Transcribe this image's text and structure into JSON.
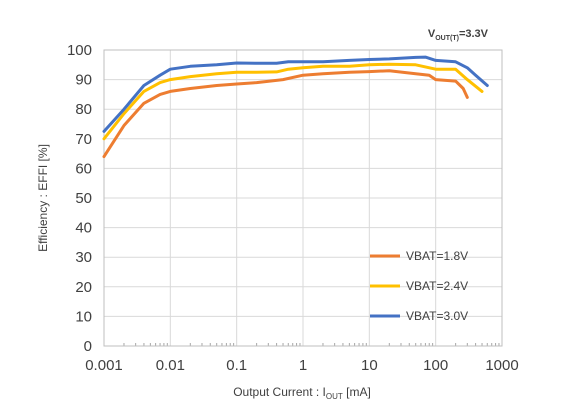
{
  "chart_data": {
    "type": "line",
    "title": "",
    "annotation": {
      "main": "V",
      "sub": "OUT(T)",
      "tail": "=3.3V"
    },
    "xlabel": {
      "main": "Output Current : I",
      "sub": "OUT",
      "tail": " [mA]"
    },
    "ylabel": "Efficiency : EFFI [%]",
    "xscale": "log",
    "xlim": [
      0.001,
      1000
    ],
    "ylim": [
      0,
      100
    ],
    "xticks": [
      0.001,
      0.01,
      0.1,
      1,
      10,
      100,
      1000
    ],
    "xtick_labels": [
      "0.001",
      "0.01",
      "0.1",
      "1",
      "10",
      "100",
      "1000"
    ],
    "yticks": [
      0,
      10,
      20,
      30,
      40,
      50,
      60,
      70,
      80,
      90,
      100
    ],
    "ytick_labels": [
      "0",
      "10",
      "20",
      "30",
      "40",
      "50",
      "60",
      "70",
      "80",
      "90",
      "100"
    ],
    "grid": true,
    "legend_position": "bottom-right",
    "series": [
      {
        "name": "VBAT=1.8V",
        "color": "#ED7D31",
        "points": [
          [
            0.001,
            64
          ],
          [
            0.002,
            74.5
          ],
          [
            0.004,
            82
          ],
          [
            0.007,
            85
          ],
          [
            0.01,
            86
          ],
          [
            0.02,
            87
          ],
          [
            0.05,
            88
          ],
          [
            0.1,
            88.5
          ],
          [
            0.2,
            89
          ],
          [
            0.5,
            90
          ],
          [
            1,
            91.5
          ],
          [
            2,
            92
          ],
          [
            5,
            92.5
          ],
          [
            10,
            92.7
          ],
          [
            20,
            93
          ],
          [
            50,
            92
          ],
          [
            80,
            91.5
          ],
          [
            100,
            90
          ],
          [
            200,
            89.5
          ],
          [
            260,
            87
          ],
          [
            300,
            84
          ]
        ]
      },
      {
        "name": "VBAT=2.4V",
        "color": "#FFC000",
        "points": [
          [
            0.001,
            70
          ],
          [
            0.002,
            78.5
          ],
          [
            0.004,
            86
          ],
          [
            0.007,
            89
          ],
          [
            0.01,
            90
          ],
          [
            0.02,
            91
          ],
          [
            0.05,
            92
          ],
          [
            0.1,
            92.5
          ],
          [
            0.2,
            92.5
          ],
          [
            0.4,
            92.6
          ],
          [
            0.6,
            93.5
          ],
          [
            1,
            94
          ],
          [
            2,
            94.5
          ],
          [
            5,
            94.5
          ],
          [
            10,
            95
          ],
          [
            20,
            95.2
          ],
          [
            50,
            95
          ],
          [
            100,
            93.5
          ],
          [
            200,
            93.5
          ],
          [
            300,
            90
          ],
          [
            500,
            86
          ]
        ]
      },
      {
        "name": "VBAT=3.0V",
        "color": "#4472C4",
        "points": [
          [
            0.001,
            72.5
          ],
          [
            0.002,
            80
          ],
          [
            0.004,
            88
          ],
          [
            0.007,
            91.5
          ],
          [
            0.01,
            93.5
          ],
          [
            0.02,
            94.5
          ],
          [
            0.05,
            95
          ],
          [
            0.1,
            95.6
          ],
          [
            0.2,
            95.5
          ],
          [
            0.4,
            95.5
          ],
          [
            0.6,
            96
          ],
          [
            1,
            96
          ],
          [
            2,
            96
          ],
          [
            5,
            96.5
          ],
          [
            10,
            96.8
          ],
          [
            20,
            97
          ],
          [
            50,
            97.5
          ],
          [
            70,
            97.6
          ],
          [
            100,
            96.5
          ],
          [
            200,
            96
          ],
          [
            300,
            94
          ],
          [
            400,
            91.5
          ],
          [
            600,
            88
          ]
        ]
      }
    ]
  }
}
